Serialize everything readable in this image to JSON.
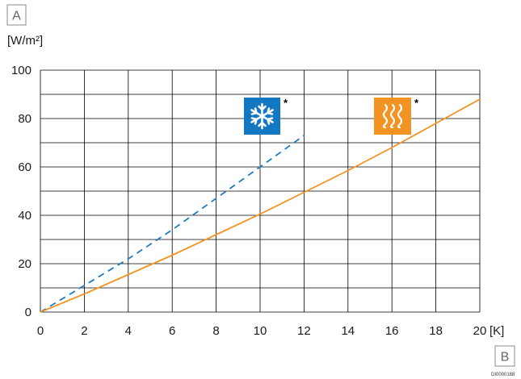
{
  "labels": {
    "y_axis_marker": "A",
    "x_axis_marker": "B",
    "y_unit": "[W/m²]",
    "x_unit": "[K]",
    "figure_code": "DI0000188",
    "cooling_asterisk": "*",
    "heating_asterisk": "*"
  },
  "icons": {
    "cooling": "snowflake-icon",
    "heating": "heat-waves-icon"
  },
  "colors": {
    "cooling": "#1f7cc0",
    "heating": "#f39323",
    "cooling_icon_bg": "#1278c3",
    "heating_icon_bg": "#f39323",
    "grid": "#000000"
  },
  "chart_data": {
    "type": "line",
    "xlim": [
      0,
      20
    ],
    "ylim": [
      0,
      100
    ],
    "xticks": [
      0,
      2,
      4,
      6,
      8,
      10,
      12,
      14,
      16,
      18,
      20
    ],
    "yticks": [
      0,
      20,
      40,
      60,
      80,
      100
    ],
    "grid": true,
    "xlabel": "[K]",
    "ylabel": "[W/m²]",
    "series": [
      {
        "key": "cooling",
        "style": "dashed",
        "color": "#1f7cc0",
        "x": [
          0,
          2,
          4,
          6,
          8,
          10,
          12
        ],
        "y": [
          0,
          11,
          22,
          34,
          47,
          60,
          73
        ]
      },
      {
        "key": "heating",
        "style": "solid",
        "color": "#f39323",
        "x": [
          0,
          2,
          4,
          6,
          8,
          10,
          12,
          14,
          16,
          18,
          20
        ],
        "y": [
          0,
          7.5,
          15.5,
          23.5,
          32,
          40.5,
          49.5,
          58.5,
          68,
          78,
          88
        ]
      }
    ]
  }
}
